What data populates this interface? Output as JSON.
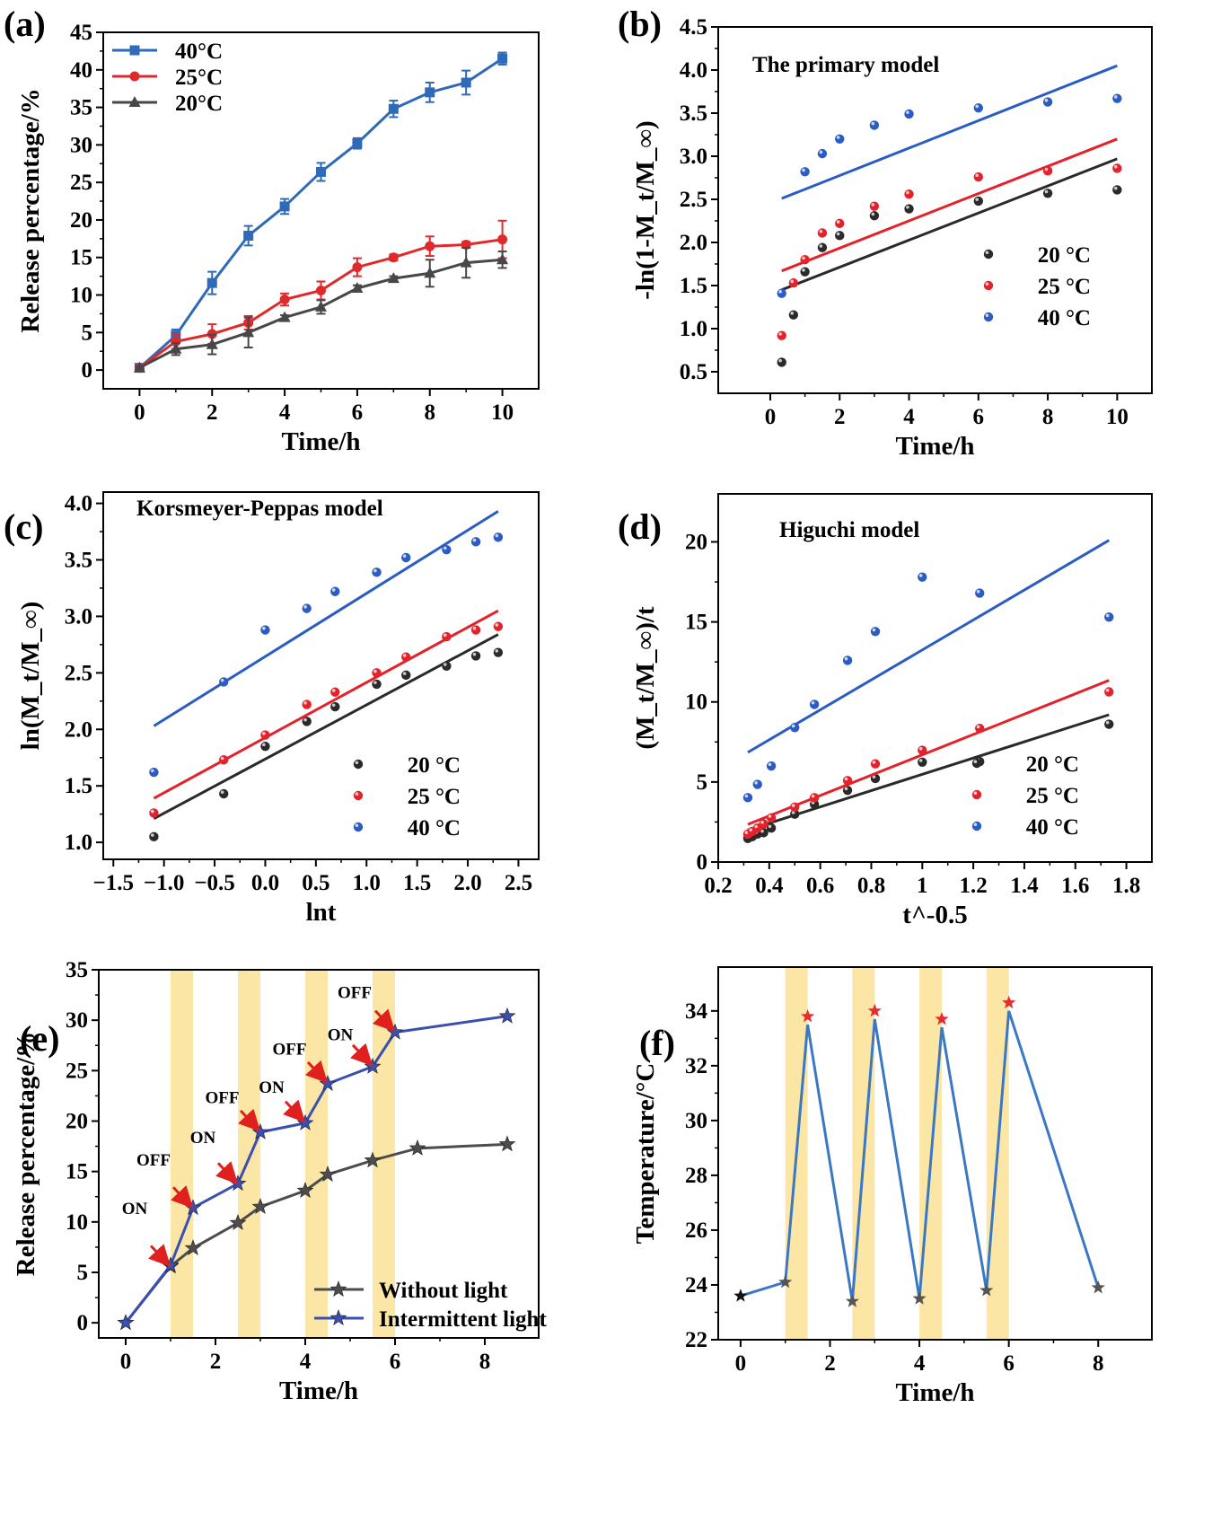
{
  "panels": {
    "a": {
      "letter": "(a)"
    },
    "b": {
      "letter": "(b)"
    },
    "c": {
      "letter": "(c)"
    },
    "d": {
      "letter": "(d)"
    },
    "e": {
      "letter": "(e)"
    },
    "f": {
      "letter": "(f)"
    }
  },
  "chart_data": [
    {
      "id": "a",
      "type": "line",
      "title": "",
      "xlabel": "Time/h",
      "ylabel": "Release percentage/%",
      "xlim": [
        -1,
        11
      ],
      "ylim": [
        -2.5,
        45
      ],
      "xticks": [
        0,
        2,
        4,
        6,
        8,
        10
      ],
      "yticks": [
        0,
        5,
        10,
        15,
        20,
        25,
        30,
        35,
        40,
        45
      ],
      "legend_position": "top-left",
      "series": [
        {
          "name": "40°C",
          "color": "#2e6ab8",
          "marker": "square",
          "x": [
            0,
            1,
            2,
            3,
            4,
            5,
            6,
            7,
            8,
            9,
            10
          ],
          "y": [
            0.3,
            4.6,
            11.6,
            17.9,
            21.8,
            26.4,
            30.2,
            34.8,
            37.0,
            38.3,
            41.5
          ],
          "err": [
            0.3,
            0.8,
            1.5,
            1.3,
            1.0,
            1.2,
            0.7,
            1.1,
            1.3,
            1.6,
            0.8
          ]
        },
        {
          "name": "25°C",
          "color": "#e0292b",
          "marker": "circle",
          "x": [
            0,
            1,
            2,
            3,
            4,
            5,
            6,
            7,
            8,
            9,
            10
          ],
          "y": [
            0.3,
            3.8,
            4.8,
            6.3,
            9.4,
            10.6,
            13.7,
            15.0,
            16.5,
            16.7,
            17.4
          ],
          "err": [
            0.2,
            1.0,
            1.3,
            0.9,
            0.8,
            1.2,
            1.2,
            0.4,
            1.3,
            0.4,
            2.5
          ]
        },
        {
          "name": "20°C",
          "color": "#474747",
          "marker": "triangle",
          "x": [
            0,
            1,
            2,
            3,
            4,
            5,
            6,
            7,
            8,
            9,
            10
          ],
          "y": [
            0.3,
            2.8,
            3.4,
            5.0,
            7.0,
            8.4,
            10.9,
            12.2,
            12.9,
            14.3,
            14.7
          ],
          "err": [
            0.2,
            0.8,
            1.3,
            2.0,
            0.3,
            0.9,
            0.4,
            0.3,
            1.8,
            2.0,
            1.1
          ]
        }
      ]
    },
    {
      "id": "b",
      "type": "scatter",
      "title": "The primary model",
      "xlabel": "Time/h",
      "ylabel": "-ln(1-M_t/M_∞)",
      "xlim": [
        -1.5,
        11
      ],
      "ylim": [
        0.25,
        4.5
      ],
      "xticks": [
        0,
        2,
        4,
        6,
        8,
        10
      ],
      "yticks": [
        0.5,
        1.0,
        1.5,
        2.0,
        2.5,
        3.0,
        3.5,
        4.0,
        4.5
      ],
      "legend_position": "bottom-right",
      "series": [
        {
          "name": "20 °C",
          "color": "#2a2a2a",
          "x": [
            0.33,
            0.67,
            1,
            1.5,
            2,
            3,
            4,
            6,
            8,
            10
          ],
          "y": [
            0.61,
            1.16,
            1.66,
            1.94,
            2.08,
            2.31,
            2.39,
            2.48,
            2.57,
            2.61
          ],
          "fit": [
            [
              0.33,
              1.45
            ],
            [
              10,
              2.97
            ]
          ]
        },
        {
          "name": "25 °C",
          "color": "#e3222b",
          "x": [
            0.33,
            0.67,
            1,
            1.5,
            2,
            3,
            4,
            6,
            8,
            10
          ],
          "y": [
            0.92,
            1.53,
            1.8,
            2.11,
            2.22,
            2.42,
            2.56,
            2.76,
            2.83,
            2.86
          ],
          "fit": [
            [
              0.33,
              1.67
            ],
            [
              10,
              3.2
            ]
          ]
        },
        {
          "name": "40 °C",
          "color": "#2a5cc4",
          "x": [
            0.33,
            1,
            1.5,
            2,
            3,
            4,
            6,
            8,
            10
          ],
          "y": [
            1.41,
            2.82,
            3.03,
            3.2,
            3.36,
            3.49,
            3.56,
            3.63,
            3.67
          ],
          "fit": [
            [
              0.33,
              2.51
            ],
            [
              10,
              4.05
            ]
          ]
        }
      ]
    },
    {
      "id": "c",
      "type": "scatter",
      "title": "Korsmeyer-Peppas model",
      "xlabel": "lnt",
      "ylabel": "ln(M_t/M_∞)",
      "xlim": [
        -1.6,
        2.7
      ],
      "ylim": [
        0.85,
        4.1
      ],
      "xticks": [
        -1.5,
        -1.0,
        -0.5,
        0.0,
        0.5,
        1.0,
        1.5,
        2.0,
        2.5
      ],
      "xticklabels": [
        "−1.5",
        "−1.0",
        "−0.5",
        "0.0",
        "0.5",
        "1.0",
        "1.5",
        "2.0",
        "2.5"
      ],
      "yticks": [
        1.0,
        1.5,
        2.0,
        2.5,
        3.0,
        3.5,
        4.0
      ],
      "legend_position": "bottom-right",
      "series": [
        {
          "name": "20 °C",
          "color": "#2a2a2a",
          "x": [
            -1.1,
            -0.41,
            0,
            0.41,
            0.69,
            1.1,
            1.39,
            1.79,
            2.08,
            2.3
          ],
          "y": [
            1.05,
            1.43,
            1.85,
            2.07,
            2.2,
            2.4,
            2.48,
            2.56,
            2.65,
            2.68
          ],
          "fit": [
            [
              -1.1,
              1.21
            ],
            [
              2.3,
              2.84
            ]
          ]
        },
        {
          "name": "25 °C",
          "color": "#e3222b",
          "x": [
            -1.1,
            -0.41,
            0,
            0.41,
            0.69,
            1.1,
            1.39,
            1.79,
            2.08,
            2.3
          ],
          "y": [
            1.26,
            1.73,
            1.95,
            2.22,
            2.33,
            2.5,
            2.64,
            2.82,
            2.88,
            2.91
          ],
          "fit": [
            [
              -1.1,
              1.39
            ],
            [
              2.3,
              3.05
            ]
          ]
        },
        {
          "name": "40 °C",
          "color": "#2a5cc4",
          "x": [
            -1.1,
            -0.41,
            0,
            0.41,
            0.69,
            1.1,
            1.39,
            1.79,
            2.08,
            2.3
          ],
          "y": [
            1.62,
            2.42,
            2.88,
            3.07,
            3.22,
            3.39,
            3.52,
            3.59,
            3.66,
            3.7
          ],
          "fit": [
            [
              -1.1,
              2.03
            ],
            [
              2.3,
              3.93
            ]
          ]
        }
      ]
    },
    {
      "id": "d",
      "type": "scatter",
      "title": "Higuchi model",
      "xlabel": "t^-0.5",
      "ylabel": "(M_t/M_∞)/t",
      "xlim": [
        0.2,
        1.9
      ],
      "ylim": [
        0,
        23
      ],
      "xticks": [
        0.2,
        0.4,
        0.6,
        0.8,
        1.0,
        1.2,
        1.4,
        1.6,
        1.8
      ],
      "yticks": [
        0,
        5,
        10,
        15,
        20
      ],
      "legend_position": "bottom-right",
      "series": [
        {
          "name": "20 °C",
          "color": "#2a2a2a",
          "x": [
            0.316,
            0.333,
            0.354,
            0.378,
            0.408,
            0.5,
            0.577,
            0.707,
            0.816,
            1.0,
            1.225,
            1.732
          ],
          "y": [
            1.47,
            1.58,
            1.75,
            1.83,
            2.12,
            2.99,
            3.61,
            4.48,
            5.22,
            6.24,
            6.27,
            8.61
          ],
          "fit": [
            [
              0.316,
              2.0
            ],
            [
              1.732,
              9.2
            ]
          ]
        },
        {
          "name": "25 °C",
          "color": "#e3222b",
          "x": [
            0.316,
            0.333,
            0.354,
            0.378,
            0.408,
            0.5,
            0.577,
            0.707,
            0.816,
            1.0,
            1.225,
            1.732
          ],
          "y": [
            1.74,
            1.91,
            2.12,
            2.38,
            2.76,
            3.43,
            4.02,
            5.09,
            6.13,
            6.98,
            8.35,
            10.63
          ],
          "fit": [
            [
              0.316,
              2.35
            ],
            [
              1.732,
              11.35
            ]
          ]
        },
        {
          "name": "40 °C",
          "color": "#2a5cc4",
          "x": [
            0.316,
            0.354,
            0.408,
            0.5,
            0.577,
            0.707,
            0.816,
            1.0,
            1.225,
            1.732
          ],
          "y": [
            4.02,
            4.85,
            6.0,
            8.4,
            9.85,
            12.6,
            14.4,
            17.8,
            16.8,
            15.3
          ],
          "fit": [
            [
              0.316,
              6.85
            ],
            [
              1.732,
              20.1
            ]
          ]
        }
      ]
    },
    {
      "id": "e",
      "type": "line",
      "title": "",
      "xlabel": "Time/h",
      "ylabel": "Release percentage/%",
      "xlim": [
        -0.6,
        9.2
      ],
      "ylim": [
        -1.5,
        35
      ],
      "xticks": [
        0,
        2,
        4,
        6,
        8
      ],
      "yticks": [
        0,
        5,
        10,
        15,
        20,
        25,
        30,
        35
      ],
      "legend_position": "bottom-right",
      "light_bands": [
        [
          1,
          1.5
        ],
        [
          2.5,
          3
        ],
        [
          4,
          4.5
        ],
        [
          5.5,
          6
        ]
      ],
      "annotations": [
        {
          "text": "ON",
          "x": 0.2,
          "y": 10.8
        },
        {
          "text": "OFF",
          "x": 0.62,
          "y": 15.6
        },
        {
          "text": "ON",
          "x": 1.72,
          "y": 17.8
        },
        {
          "text": "OFF",
          "x": 2.15,
          "y": 21.8
        },
        {
          "text": "ON",
          "x": 3.25,
          "y": 22.8
        },
        {
          "text": "OFF",
          "x": 3.65,
          "y": 26.6
        },
        {
          "text": "ON",
          "x": 4.78,
          "y": 28.0
        },
        {
          "text": "OFF",
          "x": 5.1,
          "y": 32.2
        }
      ],
      "arrows": [
        {
          "x": 1.0,
          "y": 5.5
        },
        {
          "x": 1.5,
          "y": 11.3
        },
        {
          "x": 2.5,
          "y": 13.7
        },
        {
          "x": 3.0,
          "y": 18.9
        },
        {
          "x": 4.0,
          "y": 19.8
        },
        {
          "x": 4.5,
          "y": 23.7
        },
        {
          "x": 5.5,
          "y": 25.4
        },
        {
          "x": 6.0,
          "y": 28.8
        }
      ],
      "series": [
        {
          "name": "Without light",
          "color": "#4d4d4d",
          "marker": "star",
          "x": [
            0,
            1,
            1.5,
            2.5,
            3,
            4,
            4.5,
            5.5,
            6.5,
            8.5
          ],
          "y": [
            0,
            5.6,
            7.4,
            9.9,
            11.5,
            13.1,
            14.7,
            16.1,
            17.3,
            17.7
          ]
        },
        {
          "name": "Intermittent light",
          "color": "#3a4fb0",
          "marker": "star",
          "x": [
            0,
            1,
            1.5,
            2.5,
            3,
            4,
            4.5,
            5.5,
            6,
            8.5
          ],
          "y": [
            0,
            5.7,
            11.4,
            13.8,
            18.9,
            19.8,
            23.7,
            25.4,
            28.8,
            30.4
          ]
        }
      ]
    },
    {
      "id": "f",
      "type": "line",
      "title": "",
      "xlabel": "Time/h",
      "ylabel": "Temperature/°C",
      "xlim": [
        -0.5,
        9.2
      ],
      "ylim": [
        22,
        35.6
      ],
      "xticks": [
        0,
        2,
        4,
        6,
        8
      ],
      "yticks": [
        22,
        24,
        26,
        28,
        30,
        32,
        34
      ],
      "light_bands": [
        [
          1,
          1.5
        ],
        [
          2.5,
          3
        ],
        [
          4,
          4.5
        ],
        [
          5.5,
          6
        ]
      ],
      "series": [
        {
          "name": "Temperature",
          "color": "#3b78c4",
          "x": [
            0,
            1,
            1.5,
            2.5,
            3,
            4,
            4.5,
            5.5,
            6,
            8
          ],
          "y": [
            23.6,
            24.1,
            33.5,
            23.4,
            33.7,
            23.5,
            33.4,
            23.8,
            34.0,
            23.9
          ],
          "marker_colors": [
            "#111111",
            "#555555",
            "#e52d2d",
            "#555555",
            "#e52d2d",
            "#555555",
            "#e52d2d",
            "#555555",
            "#e52d2d",
            "#555555"
          ],
          "marker_y": [
            23.6,
            24.1,
            33.8,
            23.4,
            34.0,
            23.5,
            33.7,
            23.8,
            34.3,
            23.9
          ]
        }
      ]
    }
  ]
}
